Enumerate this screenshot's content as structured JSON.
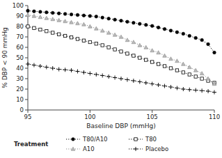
{
  "chart_data": {
    "type": "line",
    "xlabel": "Baseline DBP (mmHg)",
    "ylabel": "% DBP < 90 mmHg",
    "xlim": [
      95,
      110
    ],
    "ylim": [
      0,
      100
    ],
    "xticks": [
      95,
      100,
      105,
      110
    ],
    "yticks": [
      0,
      10,
      20,
      30,
      40,
      50,
      60,
      70,
      80,
      90,
      100
    ],
    "x": [
      95,
      95.5,
      96,
      96.5,
      97,
      97.5,
      98,
      98.5,
      99,
      99.5,
      100,
      100.5,
      101,
      101.5,
      102,
      102.5,
      103,
      103.5,
      104,
      104.5,
      105,
      105.5,
      106,
      106.5,
      107,
      107.5,
      108,
      108.5,
      109,
      109.5,
      110
    ],
    "series": [
      {
        "name": "T80/A10",
        "color": "#000000",
        "marker": "circle",
        "line_style": "dotted",
        "values": [
          95,
          94.5,
          94,
          93.5,
          93,
          92.5,
          92,
          91.5,
          91,
          90.5,
          90,
          89.5,
          88.5,
          87.5,
          86.5,
          85.5,
          84.5,
          83.5,
          82.5,
          81.5,
          80.5,
          79,
          77.5,
          76,
          74.5,
          73,
          71,
          69,
          67,
          63,
          55
        ]
      },
      {
        "name": "A10",
        "color": "#888888",
        "marker": "triangle",
        "line_style": "dotted",
        "values": [
          91,
          90,
          89,
          88,
          87,
          86,
          85,
          84,
          83,
          82,
          80,
          78,
          76,
          74,
          72,
          70,
          67,
          65,
          62,
          60,
          57,
          55,
          52,
          49,
          47,
          44,
          41,
          38,
          35,
          30,
          25
        ]
      },
      {
        "name": "T80",
        "color": "#000000",
        "marker": "open-square",
        "line_style": "dotted",
        "values": [
          80,
          78.5,
          77,
          75.5,
          74,
          72.5,
          71,
          69.5,
          68,
          66.5,
          65,
          63.5,
          62,
          60,
          58,
          56,
          54,
          52,
          50,
          48,
          46,
          44,
          42,
          40,
          38,
          36,
          34,
          32,
          30,
          28,
          26
        ]
      },
      {
        "name": "Placebo",
        "color": "#000000",
        "marker": "plus",
        "line_style": "dotted",
        "values": [
          44,
          43,
          42,
          41,
          40,
          39,
          38.5,
          38,
          37,
          36,
          35,
          34,
          33,
          32,
          31,
          30,
          29,
          28,
          27,
          26,
          25,
          24,
          23,
          22,
          21,
          20,
          19.5,
          19,
          18.5,
          18,
          17
        ]
      }
    ],
    "legend": "bottom",
    "legend_title": "Treatment",
    "grid": false
  }
}
